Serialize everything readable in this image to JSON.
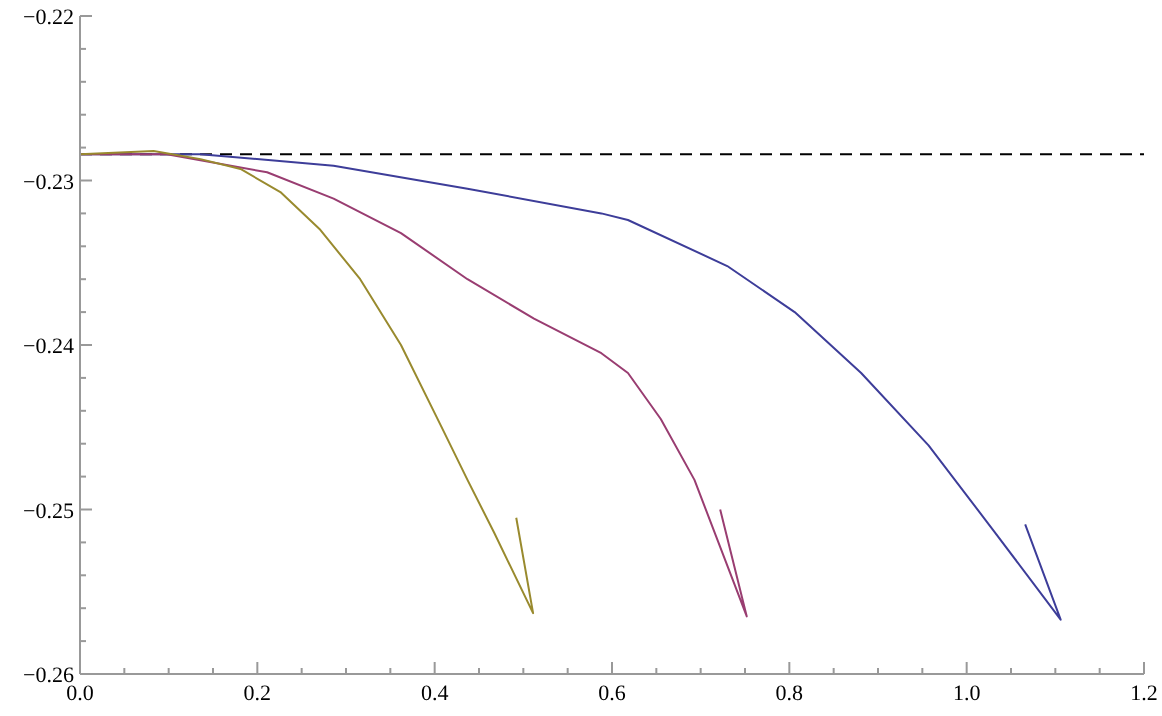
{
  "chart_data": {
    "type": "line",
    "xlim": [
      0,
      1.2
    ],
    "ylim": [
      -0.26,
      -0.22
    ],
    "xticks": [
      {
        "value": 0,
        "label": "0.0"
      },
      {
        "value": 0.05,
        "label": null
      },
      {
        "value": 0.1,
        "label": null
      },
      {
        "value": 0.15,
        "label": null
      },
      {
        "value": 0.2,
        "label": "0.2"
      },
      {
        "value": 0.25,
        "label": null
      },
      {
        "value": 0.3,
        "label": null
      },
      {
        "value": 0.35,
        "label": null
      },
      {
        "value": 0.4,
        "label": "0.4"
      },
      {
        "value": 0.45,
        "label": null
      },
      {
        "value": 0.5,
        "label": null
      },
      {
        "value": 0.55,
        "label": null
      },
      {
        "value": 0.6,
        "label": "0.6"
      },
      {
        "value": 0.65,
        "label": null
      },
      {
        "value": 0.7,
        "label": null
      },
      {
        "value": 0.75,
        "label": null
      },
      {
        "value": 0.8,
        "label": "0.8"
      },
      {
        "value": 0.85,
        "label": null
      },
      {
        "value": 0.9,
        "label": null
      },
      {
        "value": 0.95,
        "label": null
      },
      {
        "value": 1.0,
        "label": "1.0"
      },
      {
        "value": 1.05,
        "label": null
      },
      {
        "value": 1.1,
        "label": null
      },
      {
        "value": 1.15,
        "label": null
      },
      {
        "value": 1.2,
        "label": "1.2"
      }
    ],
    "yticks": [
      {
        "value": -0.26,
        "label": "−0.26"
      },
      {
        "value": -0.258,
        "label": null
      },
      {
        "value": -0.256,
        "label": null
      },
      {
        "value": -0.254,
        "label": null
      },
      {
        "value": -0.252,
        "label": null
      },
      {
        "value": -0.25,
        "label": "−0.25"
      },
      {
        "value": -0.248,
        "label": null
      },
      {
        "value": -0.246,
        "label": null
      },
      {
        "value": -0.244,
        "label": null
      },
      {
        "value": -0.242,
        "label": null
      },
      {
        "value": -0.24,
        "label": "−0.24"
      },
      {
        "value": -0.238,
        "label": null
      },
      {
        "value": -0.236,
        "label": null
      },
      {
        "value": -0.234,
        "label": null
      },
      {
        "value": -0.232,
        "label": null
      },
      {
        "value": -0.23,
        "label": "−0.23"
      },
      {
        "value": -0.228,
        "label": null
      },
      {
        "value": -0.226,
        "label": null
      },
      {
        "value": -0.224,
        "label": null
      },
      {
        "value": -0.222,
        "label": null
      },
      {
        "value": -0.22,
        "label": "−0.22"
      }
    ],
    "grid": false,
    "legend": false,
    "marker": "none",
    "line_style": "solid",
    "ref_lines": [
      {
        "axis": "y",
        "value": -0.2284,
        "color": "#000000",
        "line_style": "dashed"
      }
    ],
    "series": [
      {
        "color": "#3d3d99",
        "x": [
          0,
          0.136,
          0.286,
          0.437,
          0.588,
          0.618,
          0.73,
          0.806,
          0.881,
          0.957,
          1.032,
          1.106,
          1.066
        ],
        "values": [
          -0.2284,
          -0.2284,
          -0.2291,
          -0.2305,
          -0.232,
          -0.2324,
          -0.2352,
          -0.238,
          -0.2417,
          -0.2461,
          -0.2514,
          -0.2567,
          -0.2509
        ]
      },
      {
        "color": "#993d71",
        "x": [
          0,
          0.098,
          0.211,
          0.286,
          0.362,
          0.437,
          0.512,
          0.588,
          0.618,
          0.655,
          0.693,
          0.752,
          0.722
        ],
        "values": [
          -0.2284,
          -0.2284,
          -0.2295,
          -0.2311,
          -0.2332,
          -0.236,
          -0.2384,
          -0.2405,
          -0.2417,
          -0.2445,
          -0.2482,
          -0.2565,
          -0.25
        ]
      },
      {
        "color": "#998a2e",
        "x": [
          0,
          0.083,
          0.136,
          0.181,
          0.226,
          0.271,
          0.316,
          0.362,
          0.407,
          0.437,
          0.467,
          0.511,
          0.492
        ],
        "values": [
          -0.2284,
          -0.2282,
          -0.2287,
          -0.2293,
          -0.2307,
          -0.233,
          -0.236,
          -0.24,
          -0.2449,
          -0.2482,
          -0.2514,
          -0.2563,
          -0.2505
        ]
      }
    ]
  }
}
